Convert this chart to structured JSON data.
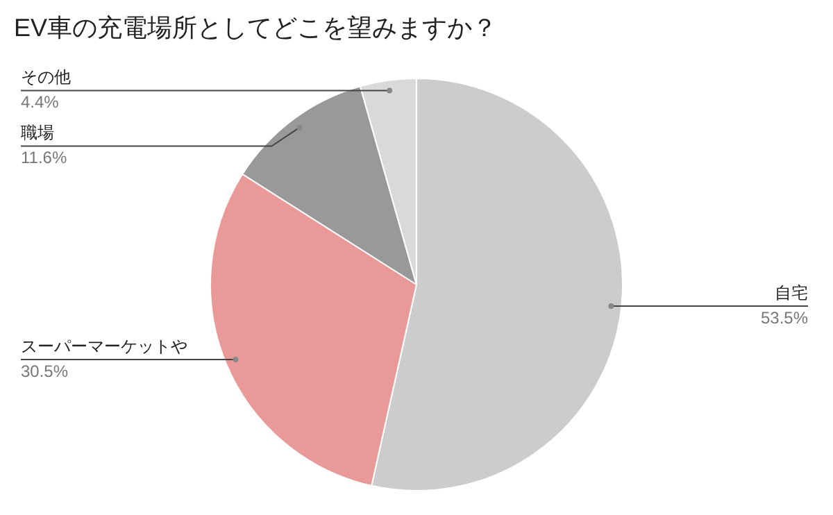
{
  "chart_data": {
    "type": "pie",
    "title": "EV車の充電場所としてどこを望みますか？",
    "categories": [
      "自宅",
      "スーパーマーケットや",
      "職場",
      "その他"
    ],
    "values": [
      53.5,
      30.5,
      11.6,
      4.4
    ],
    "value_labels": [
      "53.5%",
      "30.5%",
      "11.6%",
      "4.4%"
    ],
    "colors": [
      "#cccccc",
      "#ea9999",
      "#999999",
      "#d9d9d9"
    ],
    "legend": false
  }
}
